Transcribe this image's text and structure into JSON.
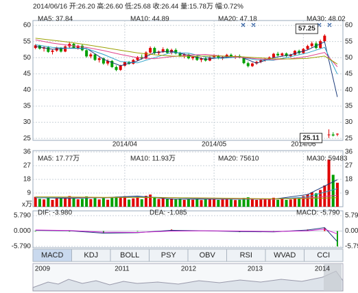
{
  "header": "2014/06/16 开:26.20 高:26.60 低:25.68 收:26.44 量:15.78万 幅:0.72%",
  "chart_data": [
    {
      "type": "candlestick",
      "up_color": "#e00000",
      "down_color": "#00a000",
      "candles": [
        [
          53.0,
          54.2,
          52.6,
          53.8
        ],
        [
          53.8,
          54.0,
          52.5,
          52.8
        ],
        [
          52.8,
          53.5,
          51.9,
          53.2
        ],
        [
          53.2,
          53.6,
          51.5,
          51.8
        ],
        [
          51.8,
          52.5,
          51.0,
          52.2
        ],
        [
          52.2,
          53.4,
          51.8,
          53.0
        ],
        [
          53.0,
          53.3,
          51.6,
          51.9
        ],
        [
          51.9,
          53.8,
          51.7,
          53.5
        ],
        [
          53.5,
          54.8,
          53.0,
          54.3
        ],
        [
          54.3,
          54.6,
          52.8,
          53.0
        ],
        [
          53.0,
          54.0,
          52.5,
          53.7
        ],
        [
          53.7,
          54.1,
          52.0,
          52.3
        ],
        [
          52.3,
          52.6,
          50.0,
          50.4
        ],
        [
          50.4,
          51.5,
          49.8,
          51.0
        ],
        [
          51.0,
          51.3,
          49.0,
          49.3
        ],
        [
          49.3,
          50.2,
          48.5,
          49.8
        ],
        [
          49.8,
          50.1,
          47.8,
          48.2
        ],
        [
          48.2,
          49.5,
          47.6,
          49.0
        ],
        [
          49.0,
          49.3,
          46.8,
          47.1
        ],
        [
          47.1,
          47.6,
          45.8,
          46.2
        ],
        [
          46.2,
          47.8,
          45.9,
          47.5
        ],
        [
          47.5,
          48.9,
          47.2,
          48.6
        ],
        [
          48.6,
          49.0,
          47.8,
          48.1
        ],
        [
          48.1,
          49.6,
          47.9,
          49.3
        ],
        [
          49.3,
          50.5,
          49.0,
          50.2
        ],
        [
          50.2,
          51.0,
          49.4,
          49.7
        ],
        [
          49.7,
          52.0,
          49.5,
          51.6
        ],
        [
          51.6,
          53.5,
          51.2,
          53.0
        ],
        [
          53.0,
          53.4,
          51.0,
          51.4
        ],
        [
          51.4,
          52.2,
          50.8,
          51.9
        ],
        [
          51.9,
          53.2,
          51.5,
          52.6
        ],
        [
          52.6,
          53.0,
          51.2,
          51.5
        ],
        [
          51.5,
          52.8,
          51.0,
          52.4
        ],
        [
          52.4,
          52.9,
          51.0,
          51.3
        ],
        [
          51.3,
          51.8,
          50.2,
          50.6
        ],
        [
          50.6,
          51.4,
          49.8,
          51.0
        ],
        [
          51.0,
          51.2,
          49.5,
          49.8
        ],
        [
          49.8,
          50.6,
          49.2,
          50.3
        ],
        [
          50.3,
          50.8,
          49.0,
          49.3
        ],
        [
          49.3,
          50.1,
          48.6,
          49.8
        ],
        [
          49.8,
          50.3,
          48.8,
          49.1
        ],
        [
          49.1,
          50.4,
          48.9,
          50.1
        ],
        [
          50.1,
          51.0,
          49.7,
          50.6
        ],
        [
          50.6,
          50.9,
          49.5,
          49.8
        ],
        [
          49.8,
          50.5,
          49.3,
          50.2
        ],
        [
          50.2,
          51.2,
          49.9,
          50.9
        ],
        [
          50.9,
          51.3,
          50.0,
          50.3
        ],
        [
          50.3,
          50.8,
          49.6,
          50.5
        ],
        [
          50.5,
          51.0,
          49.8,
          50.0
        ],
        [
          50.0,
          50.3,
          48.0,
          48.3
        ],
        [
          48.3,
          48.8,
          47.0,
          47.4
        ],
        [
          47.4,
          48.5,
          47.1,
          48.2
        ],
        [
          48.2,
          49.0,
          47.8,
          48.7
        ],
        [
          48.7,
          49.5,
          48.3,
          49.2
        ],
        [
          49.2,
          50.0,
          48.8,
          49.6
        ],
        [
          49.6,
          50.4,
          49.2,
          50.1
        ],
        [
          50.1,
          51.5,
          49.9,
          51.2
        ],
        [
          51.2,
          51.8,
          50.4,
          50.7
        ],
        [
          50.7,
          51.6,
          50.3,
          51.3
        ],
        [
          51.3,
          51.6,
          50.2,
          50.5
        ],
        [
          50.5,
          51.2,
          50.0,
          50.9
        ],
        [
          50.9,
          52.4,
          50.6,
          52.1
        ],
        [
          52.1,
          52.5,
          51.0,
          51.4
        ],
        [
          51.4,
          53.0,
          51.2,
          52.7
        ],
        [
          52.7,
          54.0,
          52.3,
          53.6
        ],
        [
          53.6,
          55.0,
          53.1,
          54.4
        ],
        [
          54.4,
          55.0,
          52.6,
          53.0
        ],
        [
          53.0,
          55.6,
          52.8,
          55.1
        ],
        [
          55.1,
          57.25,
          54.8,
          56.8
        ],
        [
          26.0,
          27.8,
          25.11,
          26.2
        ],
        [
          26.2,
          26.9,
          25.6,
          25.9
        ],
        [
          26.2,
          26.6,
          25.68,
          26.44
        ]
      ],
      "series": [
        {
          "name": "MA5: 37.84",
          "color": "#1a3a7a",
          "x": [
            0,
            4,
            8,
            12,
            16,
            20,
            24,
            28,
            32,
            36,
            40,
            44,
            48,
            52,
            56,
            60,
            64,
            68,
            71
          ],
          "values": [
            53.5,
            52.6,
            53.0,
            52.9,
            49.5,
            47.5,
            49.0,
            51.6,
            52.0,
            50.7,
            49.5,
            50.1,
            50.4,
            48.3,
            50.0,
            50.9,
            52.4,
            54.9,
            37.84
          ]
        },
        {
          "name": "MA10: 44.89",
          "color": "#2aa0c8",
          "x": [
            0,
            4,
            8,
            12,
            16,
            20,
            24,
            28,
            32,
            36,
            40,
            44,
            48,
            52,
            56,
            60,
            64,
            68,
            71
          ],
          "values": [
            54.0,
            53.2,
            52.9,
            52.8,
            51.0,
            48.8,
            48.4,
            50.0,
            51.6,
            51.4,
            50.2,
            49.8,
            50.2,
            49.3,
            49.2,
            50.3,
            51.5,
            53.2,
            44.89
          ]
        },
        {
          "name": "MA20: 47.18",
          "color": "#e0408a",
          "x": [
            0,
            4,
            8,
            12,
            16,
            20,
            24,
            28,
            32,
            36,
            40,
            44,
            48,
            52,
            56,
            60,
            64,
            68,
            71
          ],
          "values": [
            55.5,
            54.5,
            53.8,
            53.2,
            52.2,
            51.0,
            50.0,
            49.7,
            50.3,
            50.8,
            51.0,
            50.5,
            50.1,
            49.7,
            49.4,
            49.7,
            50.4,
            51.6,
            47.18
          ]
        },
        {
          "name": "MA30: 48.02",
          "color": "#9aa000",
          "x": [
            0,
            4,
            8,
            12,
            16,
            20,
            24,
            28,
            32,
            36,
            40,
            44,
            48,
            52,
            56,
            60,
            64,
            68,
            71
          ],
          "values": [
            56.0,
            55.4,
            54.8,
            54.0,
            53.2,
            52.3,
            51.5,
            50.9,
            50.5,
            50.4,
            50.5,
            50.5,
            50.3,
            50.0,
            49.7,
            49.6,
            49.8,
            50.5,
            48.02
          ]
        }
      ],
      "annotations": [
        "57.25",
        "25.11"
      ],
      "ylim": [
        24.4,
        61.5
      ],
      "yticks": [
        60,
        55,
        50,
        45,
        40,
        35,
        30,
        25
      ],
      "xlim": [
        -0.6,
        72.3
      ],
      "xticks": [
        {
          "value": 21,
          "label": "2014/04"
        },
        {
          "value": 42,
          "label": "2014/05"
        },
        {
          "value": 63,
          "label": "2014/06"
        }
      ],
      "grid": true
    },
    {
      "type": "bar",
      "ylabel": "x万",
      "values": [
        6.5,
        5.2,
        4.8,
        6.0,
        4.5,
        5.5,
        5.8,
        6.2,
        7.0,
        5.5,
        4.9,
        5.2,
        6.8,
        5.0,
        5.6,
        4.8,
        5.9,
        4.6,
        6.2,
        6.6,
        5.8,
        6.9,
        4.7,
        5.5,
        6.1,
        4.9,
        7.2,
        8.0,
        6.4,
        5.1,
        5.7,
        5.0,
        5.4,
        4.8,
        5.3,
        4.5,
        5.0,
        4.6,
        5.1,
        4.4,
        4.9,
        5.2,
        5.6,
        4.5,
        4.8,
        5.3,
        4.7,
        4.4,
        4.6,
        5.8,
        6.2,
        4.9,
        4.5,
        4.7,
        4.8,
        5.0,
        5.9,
        4.6,
        5.1,
        4.5,
        4.8,
        6.0,
        5.2,
        7.0,
        8.2,
        9.5,
        8.8,
        11.0,
        14.0,
        31.0,
        21.0,
        15.78
      ],
      "series": [
        {
          "name": "MA5: 17.77万",
          "color": "#1a3a7a",
          "x": [
            0,
            8,
            16,
            24,
            32,
            40,
            48,
            56,
            64,
            71
          ],
          "values": [
            6,
            5.5,
            6,
            7,
            5,
            5,
            5,
            5,
            8,
            17.77
          ]
        },
        {
          "name": "MA10: 11.93万",
          "color": "#2aa0c8",
          "x": [
            0,
            8,
            16,
            24,
            32,
            40,
            48,
            56,
            64,
            71
          ],
          "values": [
            6,
            6,
            5.8,
            6.5,
            6,
            5.2,
            5,
            5,
            6.5,
            11.93
          ]
        },
        {
          "name": "MA20: 75610",
          "color": "#e0408a",
          "x": [
            0,
            8,
            16,
            24,
            32,
            40,
            48,
            56,
            64,
            71
          ],
          "values": [
            6.5,
            6.2,
            6,
            6.2,
            6,
            5.5,
            5.2,
            5,
            5.8,
            7.561
          ]
        },
        {
          "name": "MA30: 59483",
          "color": "#9aa000",
          "x": [
            0,
            8,
            16,
            24,
            32,
            40,
            48,
            56,
            64,
            71
          ],
          "values": [
            6.5,
            6.4,
            6.2,
            6.1,
            6,
            5.8,
            5.5,
            5.2,
            5.4,
            5.9483
          ]
        }
      ],
      "ylim": [
        0,
        36.9
      ],
      "yticks": [
        36,
        27,
        18,
        9
      ],
      "grid": true
    },
    {
      "type": "macd",
      "series": [
        {
          "name": "DIF: -3.980",
          "color": "#1a3a7a",
          "x": [
            0,
            8,
            16,
            24,
            32,
            40,
            48,
            56,
            64,
            68,
            71
          ],
          "values": [
            0.3,
            0.1,
            -0.8,
            -0.6,
            0.3,
            0.1,
            -0.2,
            -0.3,
            0.4,
            1.3,
            -3.98
          ]
        },
        {
          "name": "DEA: -1.085",
          "color": "#d020d0",
          "x": [
            0,
            8,
            16,
            24,
            32,
            40,
            48,
            56,
            64,
            68,
            71
          ],
          "values": [
            0.4,
            0.2,
            -0.4,
            -0.5,
            0.0,
            0.1,
            0.0,
            -0.2,
            0.1,
            0.7,
            -1.085
          ]
        },
        {
          "name": "MACD: -5.790",
          "color": "#e00000",
          "x": [
            0,
            8,
            16,
            24,
            32,
            40,
            48,
            56,
            64,
            68,
            71
          ],
          "values": [
            -0.2,
            -0.2,
            -0.8,
            -0.2,
            0.6,
            0,
            -0.4,
            -0.2,
            0.6,
            1.2,
            -5.79
          ]
        }
      ],
      "ylim": [
        -6.3,
        7.6
      ],
      "yticks": [
        {
          "value": 5.79,
          "label": "5.790"
        },
        {
          "value": 0,
          "label": "0.000"
        },
        {
          "value": -5.79,
          "label": "-5.790"
        }
      ]
    }
  ],
  "tabs": [
    "MACD",
    "KDJ",
    "BOLL",
    "PSY",
    "OBV",
    "RSI",
    "WVAD",
    "CCI"
  ],
  "navigator": {
    "years": [
      "2009",
      "2011",
      "2012",
      "2013",
      "2014"
    ]
  }
}
